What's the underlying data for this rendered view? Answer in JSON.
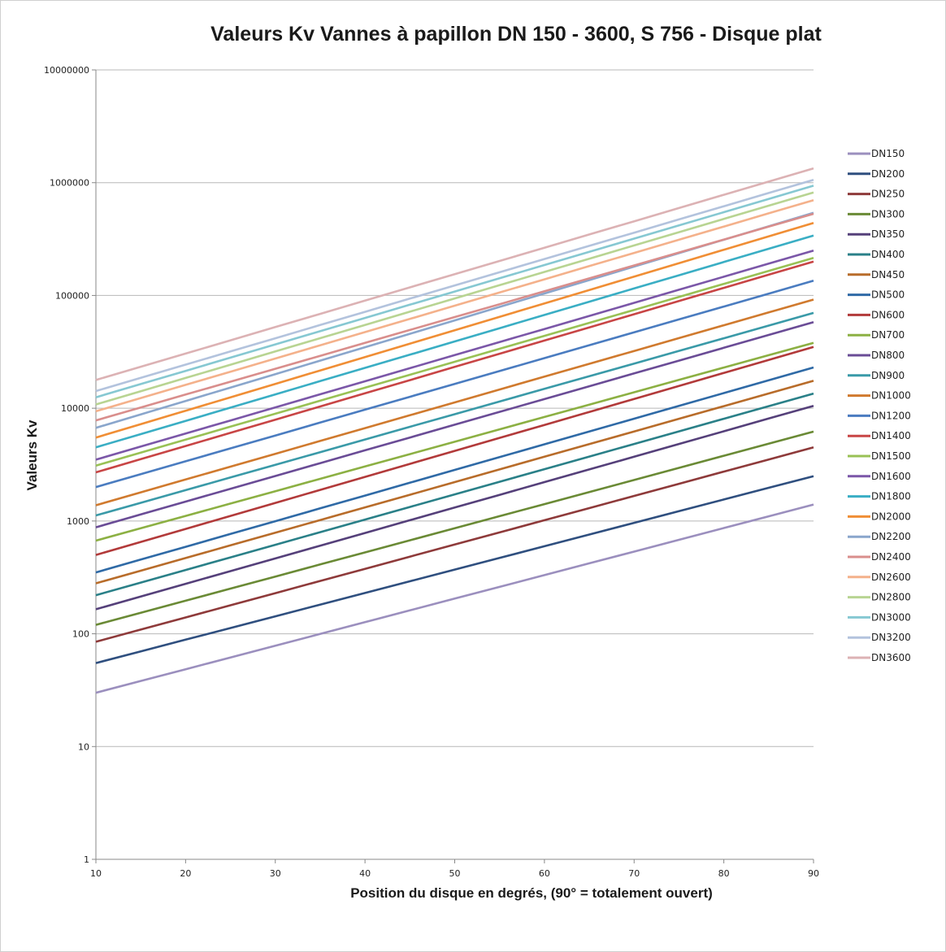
{
  "chart_data": {
    "type": "line",
    "title": "Valeurs Kv Vannes à papillon DN 150 - 3600, S 756 - Disque plat",
    "xlabel": "Position du disque en degrés, (90° = totalement ouvert)",
    "ylabel": "Valeurs Kv",
    "x": [
      10,
      90
    ],
    "xticks": [
      "10",
      "20",
      "30",
      "40",
      "50",
      "60",
      "70",
      "80",
      "90"
    ],
    "xlim": [
      10,
      90
    ],
    "yscale": "log",
    "ylim": [
      1,
      10000000
    ],
    "yticks": [
      "1",
      "10",
      "100",
      "1000",
      "10000",
      "100000",
      "1000000",
      "10000000"
    ],
    "grid": "horizontal",
    "legend_position": "right",
    "series": [
      {
        "name": "DN150",
        "color": "#9b8fbe",
        "values": [
          30,
          1400
        ]
      },
      {
        "name": "DN200",
        "color": "#2f4f7f",
        "values": [
          55,
          2500
        ]
      },
      {
        "name": "DN250",
        "color": "#8e3a3a",
        "values": [
          85,
          4500
        ]
      },
      {
        "name": "DN300",
        "color": "#6a8a35",
        "values": [
          120,
          6200
        ]
      },
      {
        "name": "DN350",
        "color": "#55407a",
        "values": [
          165,
          10500
        ]
      },
      {
        "name": "DN400",
        "color": "#2a8088",
        "values": [
          220,
          13500
        ]
      },
      {
        "name": "DN450",
        "color": "#b86c2a",
        "values": [
          280,
          17500
        ]
      },
      {
        "name": "DN500",
        "color": "#2f6aa6",
        "values": [
          350,
          23000
        ]
      },
      {
        "name": "DN600",
        "color": "#b23a3a",
        "values": [
          500,
          35000
        ]
      },
      {
        "name": "DN700",
        "color": "#8cb043",
        "values": [
          670,
          38000
        ]
      },
      {
        "name": "DN800",
        "color": "#6a4c96",
        "values": [
          880,
          58000
        ]
      },
      {
        "name": "DN900",
        "color": "#3a9aa8",
        "values": [
          1120,
          70000
        ]
      },
      {
        "name": "DN1000",
        "color": "#d07a2e",
        "values": [
          1380,
          92000
        ]
      },
      {
        "name": "DN1200",
        "color": "#4a7cc0",
        "values": [
          2000,
          135000
        ]
      },
      {
        "name": "DN1400",
        "color": "#c84545",
        "values": [
          2700,
          200000
        ]
      },
      {
        "name": "DN1500",
        "color": "#99c155",
        "values": [
          3100,
          215000
        ]
      },
      {
        "name": "DN1600",
        "color": "#7b57a8",
        "values": [
          3500,
          250000
        ]
      },
      {
        "name": "DN1800",
        "color": "#3aaec4",
        "values": [
          4500,
          340000
        ]
      },
      {
        "name": "DN2000",
        "color": "#f08e35",
        "values": [
          5500,
          440000
        ]
      },
      {
        "name": "DN2200",
        "color": "#8aa6cc",
        "values": [
          6700,
          540000
        ]
      },
      {
        "name": "DN2400",
        "color": "#d98e8c",
        "values": [
          7800,
          530000
        ]
      },
      {
        "name": "DN2600",
        "color": "#f4b18b",
        "values": [
          9400,
          700000
        ]
      },
      {
        "name": "DN2800",
        "color": "#b8d492",
        "values": [
          10800,
          820000
        ]
      },
      {
        "name": "DN3000",
        "color": "#86c8d2",
        "values": [
          12500,
          940000
        ]
      },
      {
        "name": "DN3200",
        "color": "#b3c3dd",
        "values": [
          14200,
          1060000
        ]
      },
      {
        "name": "DN3600",
        "color": "#dcb2b4",
        "values": [
          17800,
          1340000
        ]
      }
    ]
  }
}
